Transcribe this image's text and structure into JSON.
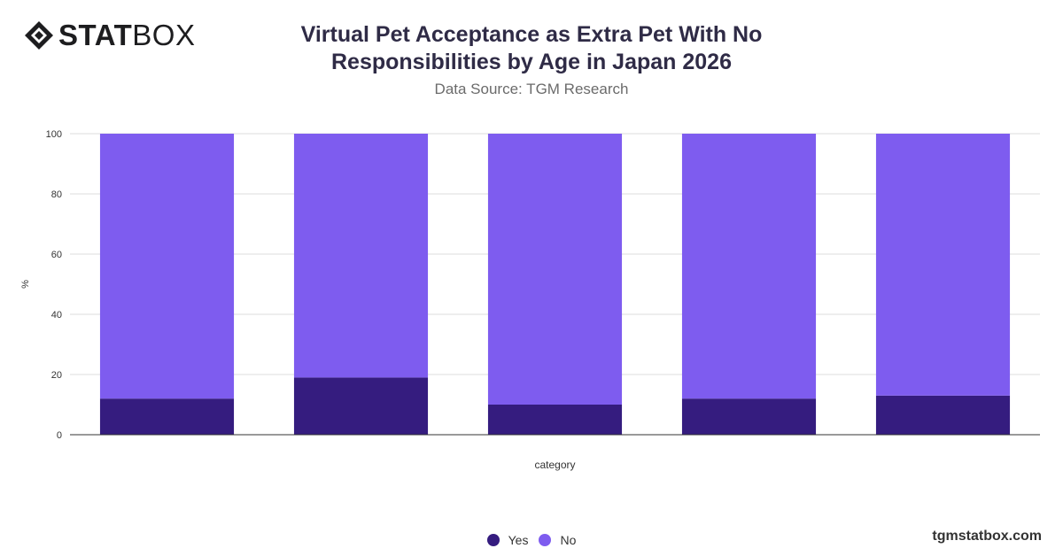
{
  "brand": {
    "logo_bold": "STAT",
    "logo_light": "BOX",
    "watermark": "tgmstatbox.com"
  },
  "colors": {
    "yes": "#351c7f",
    "no": "#7e5cef",
    "grid": "#dddddd",
    "axis": "#333333"
  },
  "chart_data": {
    "type": "bar",
    "stacked": true,
    "title": "Virtual Pet Acceptance as Extra Pet With No Responsibilities by Age in Japan 2026",
    "subtitle": "Data Source: TGM Research",
    "xlabel": "category",
    "ylabel": "%",
    "ylim": [
      0,
      100
    ],
    "yticks": [
      0,
      20,
      40,
      60,
      80,
      100
    ],
    "categories": [
      "",
      "",
      "",
      "",
      ""
    ],
    "series": [
      {
        "name": "Yes",
        "values": [
          12,
          19,
          10,
          12,
          13
        ]
      },
      {
        "name": "No",
        "values": [
          88,
          81,
          90,
          88,
          87
        ]
      }
    ],
    "grid": true,
    "legend_position": "bottom"
  }
}
